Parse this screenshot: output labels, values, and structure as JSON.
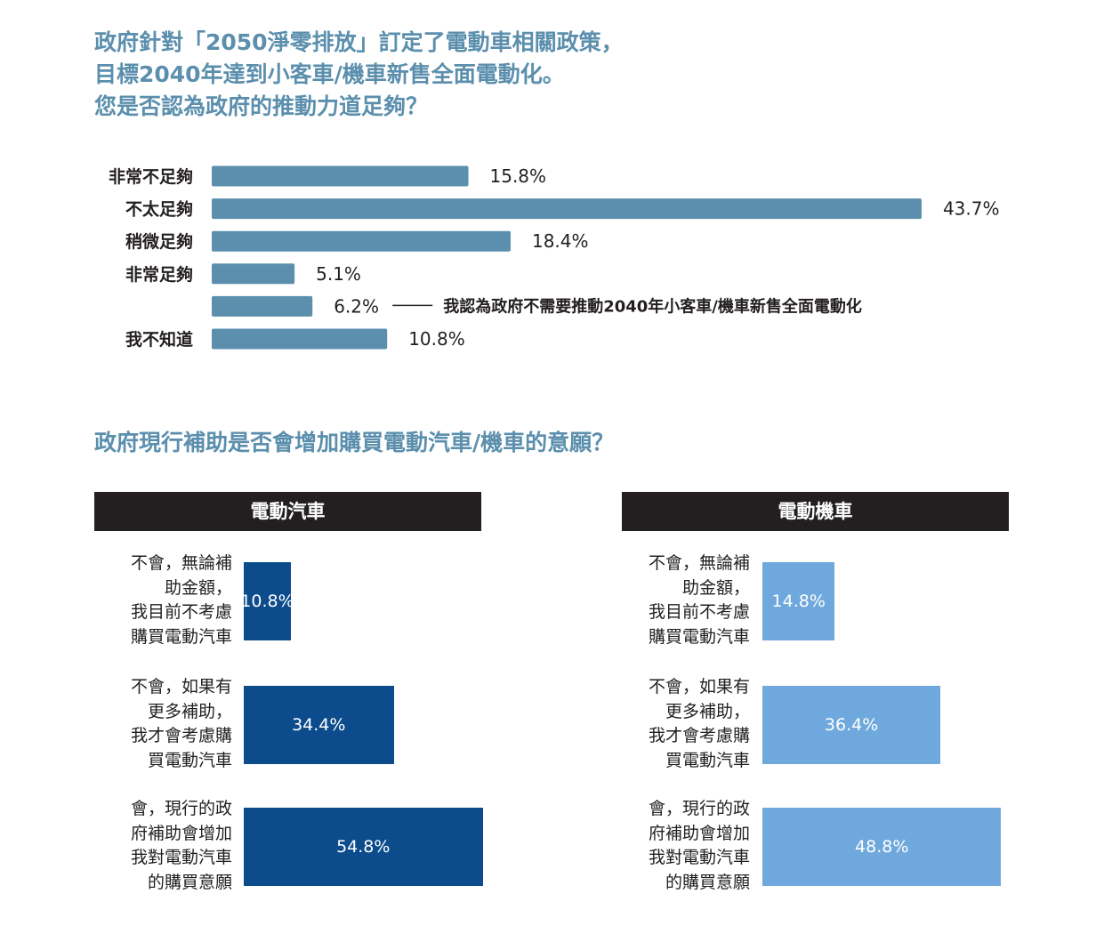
{
  "q1": {
    "title_lines": [
      "政府針對「2050淨零排放」訂定了電動車相關政策，",
      "目標2040年達到小客車/機車新售全面電動化。",
      "您是否認為政府的推動力道足夠？"
    ],
    "chart_data": {
      "type": "bar",
      "orientation": "horizontal",
      "categories": [
        "非常不足夠",
        "不太足夠",
        "稍微足夠",
        "非常足夠",
        "",
        "我不知道"
      ],
      "values": [
        15.8,
        43.7,
        18.4,
        5.1,
        6.2,
        10.8
      ],
      "value_labels": [
        "15.8%",
        "43.7%",
        "18.4%",
        "5.1%",
        "6.2%",
        "10.8%"
      ],
      "unit": "%",
      "annotation": {
        "category_index": 4,
        "text": "我認為政府不需要推動2040年小客車/機車新售全面電動化"
      },
      "bar_color": "#5b8fad"
    }
  },
  "q2": {
    "title": "政府現行補助是否會增加購買電動汽車/機車的意願？",
    "chart_data": [
      {
        "type": "bar",
        "orientation": "horizontal",
        "title": "電動汽車",
        "categories": [
          "不會，無論補\n助金額，\n我目前不考慮\n購買電動汽車",
          "不會，如果有\n更多補助，\n我才會考慮購\n買電動汽車",
          "會，現行的政\n府補助會增加\n我對電動汽車\n的購買意願"
        ],
        "values": [
          10.8,
          34.4,
          54.8
        ],
        "value_labels": [
          "10.8%",
          "34.4%",
          "54.8%"
        ],
        "bar_color": "#0d4c8c"
      },
      {
        "type": "bar",
        "orientation": "horizontal",
        "title": "電動機車",
        "categories": [
          "不會，無論補\n助金額，\n我目前不考慮\n購買電動汽車",
          "不會，如果有\n更多補助，\n我才會考慮購\n買電動汽車",
          "會，現行的政\n府補助會增加\n我對電動汽車\n的購買意願"
        ],
        "values": [
          14.8,
          36.4,
          48.8
        ],
        "value_labels": [
          "14.8%",
          "36.4%",
          "48.8%"
        ],
        "bar_color": "#6fa8dc"
      }
    ]
  },
  "colors": {
    "title": "#5b8fad",
    "text": "#231f20",
    "header_bg": "#231f20"
  }
}
